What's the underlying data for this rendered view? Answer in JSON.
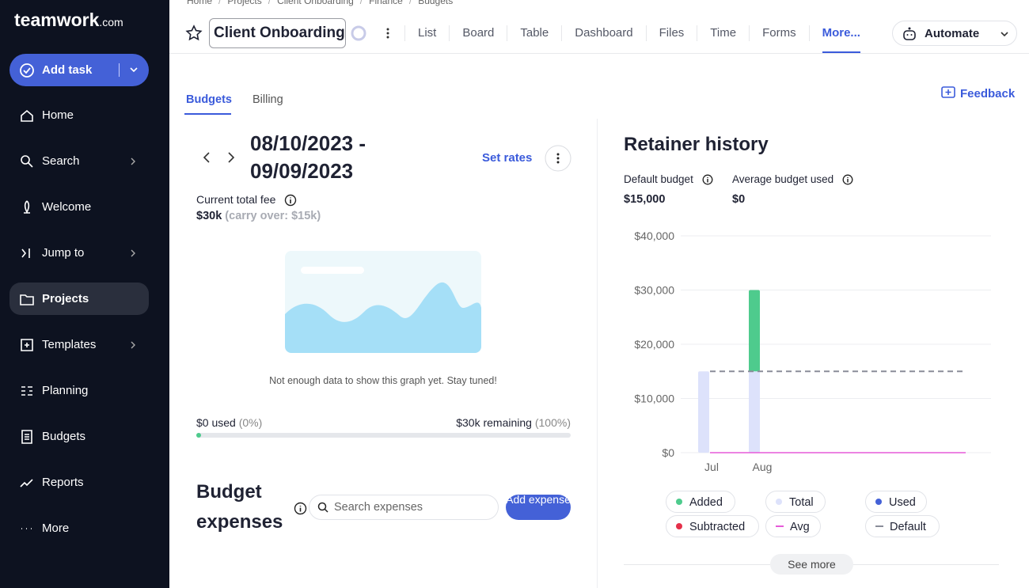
{
  "brand": {
    "name": "teamwork",
    "suffix": ".com"
  },
  "sidebar": {
    "add_task": "Add task",
    "items": [
      "Home",
      "Search",
      "Welcome",
      "Jump to",
      "Projects",
      "Templates",
      "Planning",
      "Budgets",
      "Reports",
      "More"
    ]
  },
  "breadcrumb": [
    "Home",
    "Projects",
    "Client Onboarding",
    "Finance",
    "Budgets"
  ],
  "header": {
    "project": "Client Onboarding",
    "tabs": [
      "List",
      "Board",
      "Table",
      "Dashboard",
      "Files",
      "Time",
      "Forms",
      "More..."
    ],
    "automate": "Automate"
  },
  "subtabs": [
    "Budgets",
    "Billing"
  ],
  "feedback": "Feedback",
  "budget": {
    "period": "08/10/2023 - 09/09/2023",
    "set_rates": "Set rates",
    "fee_label": "Current total fee",
    "fee": "$30k",
    "carry": "(carry over: $15k)",
    "empty_note": "Not enough data to show this graph yet. Stay tuned!",
    "used": "$0 used",
    "used_pct": "(0%)",
    "remaining": "$30k remaining",
    "remaining_pct": "(100%)"
  },
  "expenses": {
    "title": "Budget expenses",
    "search": "Search expenses",
    "add": "Add expense"
  },
  "retainer": {
    "title": "Retainer history",
    "default_label": "Default budget",
    "default_value": "$15,000",
    "avg_label": "Average budget used",
    "avg_value": "$0",
    "see_more": "See more"
  },
  "chart_data": {
    "type": "bar",
    "stacked": true,
    "categories": [
      "Jul",
      "Aug"
    ],
    "series": [
      {
        "name": "Added",
        "color": "#4ecb8d",
        "kind": "bar",
        "values": [
          0,
          15000
        ]
      },
      {
        "name": "Total",
        "color": "#dde2fb",
        "kind": "bar",
        "values": [
          15000,
          15000
        ]
      },
      {
        "name": "Used",
        "color": "#4461d7",
        "kind": "bar",
        "values": [
          0,
          0
        ]
      },
      {
        "name": "Subtracted",
        "color": "#e5304a",
        "kind": "bar",
        "values": [
          0,
          0
        ]
      },
      {
        "name": "Avg",
        "color": "#e65ad9",
        "kind": "line",
        "values": [
          0,
          0
        ]
      },
      {
        "name": "Default",
        "color": "#8a8d99",
        "kind": "line",
        "dashed": true,
        "values": [
          15000,
          15000
        ]
      }
    ],
    "ylim": [
      0,
      40000
    ],
    "yticks": [
      {
        "value": 0,
        "label": "$0"
      },
      {
        "value": 10000,
        "label": "$10,000"
      },
      {
        "value": 20000,
        "label": "$20,000"
      },
      {
        "value": 30000,
        "label": "$30,000"
      },
      {
        "value": 40000,
        "label": "$40,000"
      }
    ],
    "grid": true
  }
}
